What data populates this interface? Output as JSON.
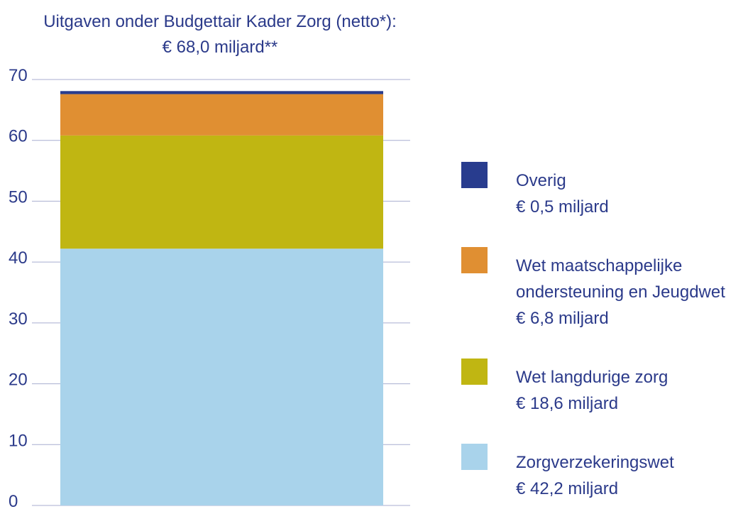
{
  "chart_data": {
    "type": "stacked-bar",
    "title": "Uitgaven onder Budgettair Kader Zorg (netto*):",
    "subtitle": "€ 68,0 miljard**",
    "categories": [
      null
    ],
    "series": [
      {
        "name": "Zorgverzekeringswet",
        "color": "#a9d3eb",
        "values": [
          42.2
        ],
        "value_labels": [
          "€ 42,2 miljard"
        ]
      },
      {
        "name": "Wet langdurige zorg",
        "color": "#c0b612",
        "values": [
          18.6
        ],
        "value_labels": [
          "€ 18,6 miljard"
        ]
      },
      {
        "name": "Wet maatschappelijke ondersteuning en Jeugdwet",
        "color": "#e08f32",
        "values": [
          6.8
        ],
        "value_labels": [
          "€ 6,8 miljard"
        ]
      },
      {
        "name": "Overig",
        "color": "#283c8e",
        "values": [
          0.5
        ],
        "value_labels": [
          "€ 0,5 miljard"
        ]
      }
    ],
    "ylim": [
      0,
      70
    ],
    "yticks": [
      0,
      10,
      20,
      30,
      40,
      50,
      60,
      70
    ],
    "grid": true,
    "legend": "right"
  }
}
